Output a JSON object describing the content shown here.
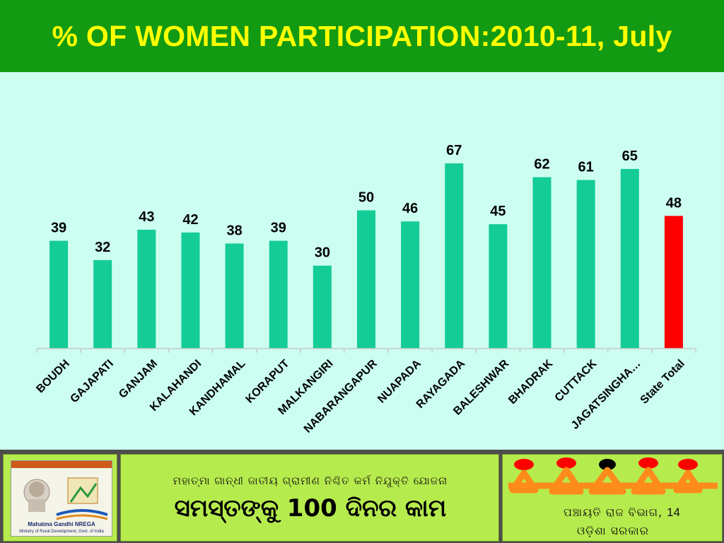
{
  "header": {
    "title": "% OF WOMEN PARTICIPATION:2010-11, July"
  },
  "chart_data": {
    "type": "bar",
    "title": "% OF WOMEN PARTICIPATION:2010-11, July",
    "categories": [
      "BOUDH",
      "GAJAPATI",
      "GANJAM",
      "KALAHANDI",
      "KANDHAMAL",
      "KORAPUT",
      "MALKANGIRI",
      "NABARANGAPUR",
      "NUAPADA",
      "RAYAGADA",
      "BALESHWAR",
      "BHADRAK",
      "CUTTACK",
      "JAGATSINGHA…",
      "State Total"
    ],
    "values": [
      39,
      32,
      43,
      42,
      38,
      39,
      30,
      50,
      46,
      67,
      45,
      62,
      61,
      65,
      48
    ],
    "colors": [
      "#14cc96",
      "#14cc96",
      "#14cc96",
      "#14cc96",
      "#14cc96",
      "#14cc96",
      "#14cc96",
      "#14cc96",
      "#14cc96",
      "#14cc96",
      "#14cc96",
      "#14cc96",
      "#14cc96",
      "#14cc96",
      "#ff0000"
    ],
    "ylim": [
      0,
      88
    ],
    "grid": false,
    "legend": "none",
    "data_labels": true,
    "xlabel": "",
    "ylabel": ""
  },
  "footer": {
    "logo_caption": "Mahatma Gandhi NREGA",
    "logo_subcaption": "Ministry of Rural Development, Govt. of India",
    "scheme_line": "ମହାତ୍ମା ଗାନ୍ଧୀ ଜାତୀୟ ଗ୍ରାମୀଣ ନିଶ୍ଚିତ କର୍ମ ନିଯୁକ୍ତି ଯୋଜନା",
    "slogan": "ସମସ୍ତଙ୍କୁ 100 ଦିନର କାମ",
    "dept_line": "ପଞ୍ଚାୟତି ରାଜ ବିଭାଗ,",
    "govt_line": "ଓଡ଼ିଶା ସରକାର",
    "page_number": "14",
    "logo_colors": {
      "orange": "#ff8c1a",
      "red": "#ff0000",
      "black": "#000000"
    }
  }
}
